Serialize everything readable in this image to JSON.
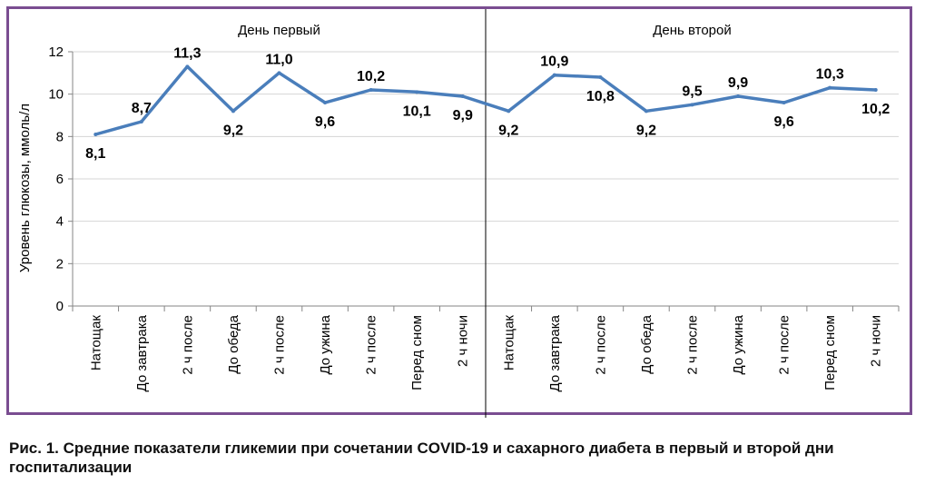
{
  "chart_data": {
    "type": "line",
    "ylabel": "Уровень глюкозы, ммоль/л",
    "ylim": [
      0,
      12
    ],
    "yticks": [
      "0",
      "2",
      "4",
      "6",
      "8",
      "10",
      "12"
    ],
    "ytick_values": [
      0,
      2,
      4,
      6,
      8,
      10,
      12
    ],
    "grid": "horizontal",
    "groups": [
      {
        "label": "День первый",
        "count": 9
      },
      {
        "label": "День второй",
        "count": 9
      }
    ],
    "categories": [
      "Натощак",
      "До завтрака",
      "2 ч после",
      "До обеда",
      "2 ч после",
      "До ужина",
      "2 ч после",
      "Перед сном",
      "2 ч ночи",
      "Натощак",
      "До завтрака",
      "2 ч после",
      "До обеда",
      "2 ч после",
      "До ужина",
      "2 ч после",
      "Перед сном",
      "2 ч ночи"
    ],
    "series": [
      {
        "values": [
          8.1,
          8.7,
          11.3,
          9.2,
          11.0,
          9.6,
          10.2,
          10.1,
          9.9,
          9.2,
          10.9,
          10.8,
          9.2,
          9.5,
          9.9,
          9.6,
          10.3,
          10.2
        ],
        "labels": [
          "8,1",
          "8,7",
          "11,3",
          "9,2",
          "11,0",
          "9,6",
          "10,2",
          "10,1",
          "9,9",
          "9,2",
          "10,9",
          "10,8",
          "9,2",
          "9,5",
          "9,9",
          "9,6",
          "10,3",
          "10,2"
        ],
        "color": "#4a7ebb"
      }
    ]
  },
  "caption": "Рис. 1. Средние показатели гликемии при сочетании COVID-19 и сахарного диабета в первый и второй дни госпитализации"
}
